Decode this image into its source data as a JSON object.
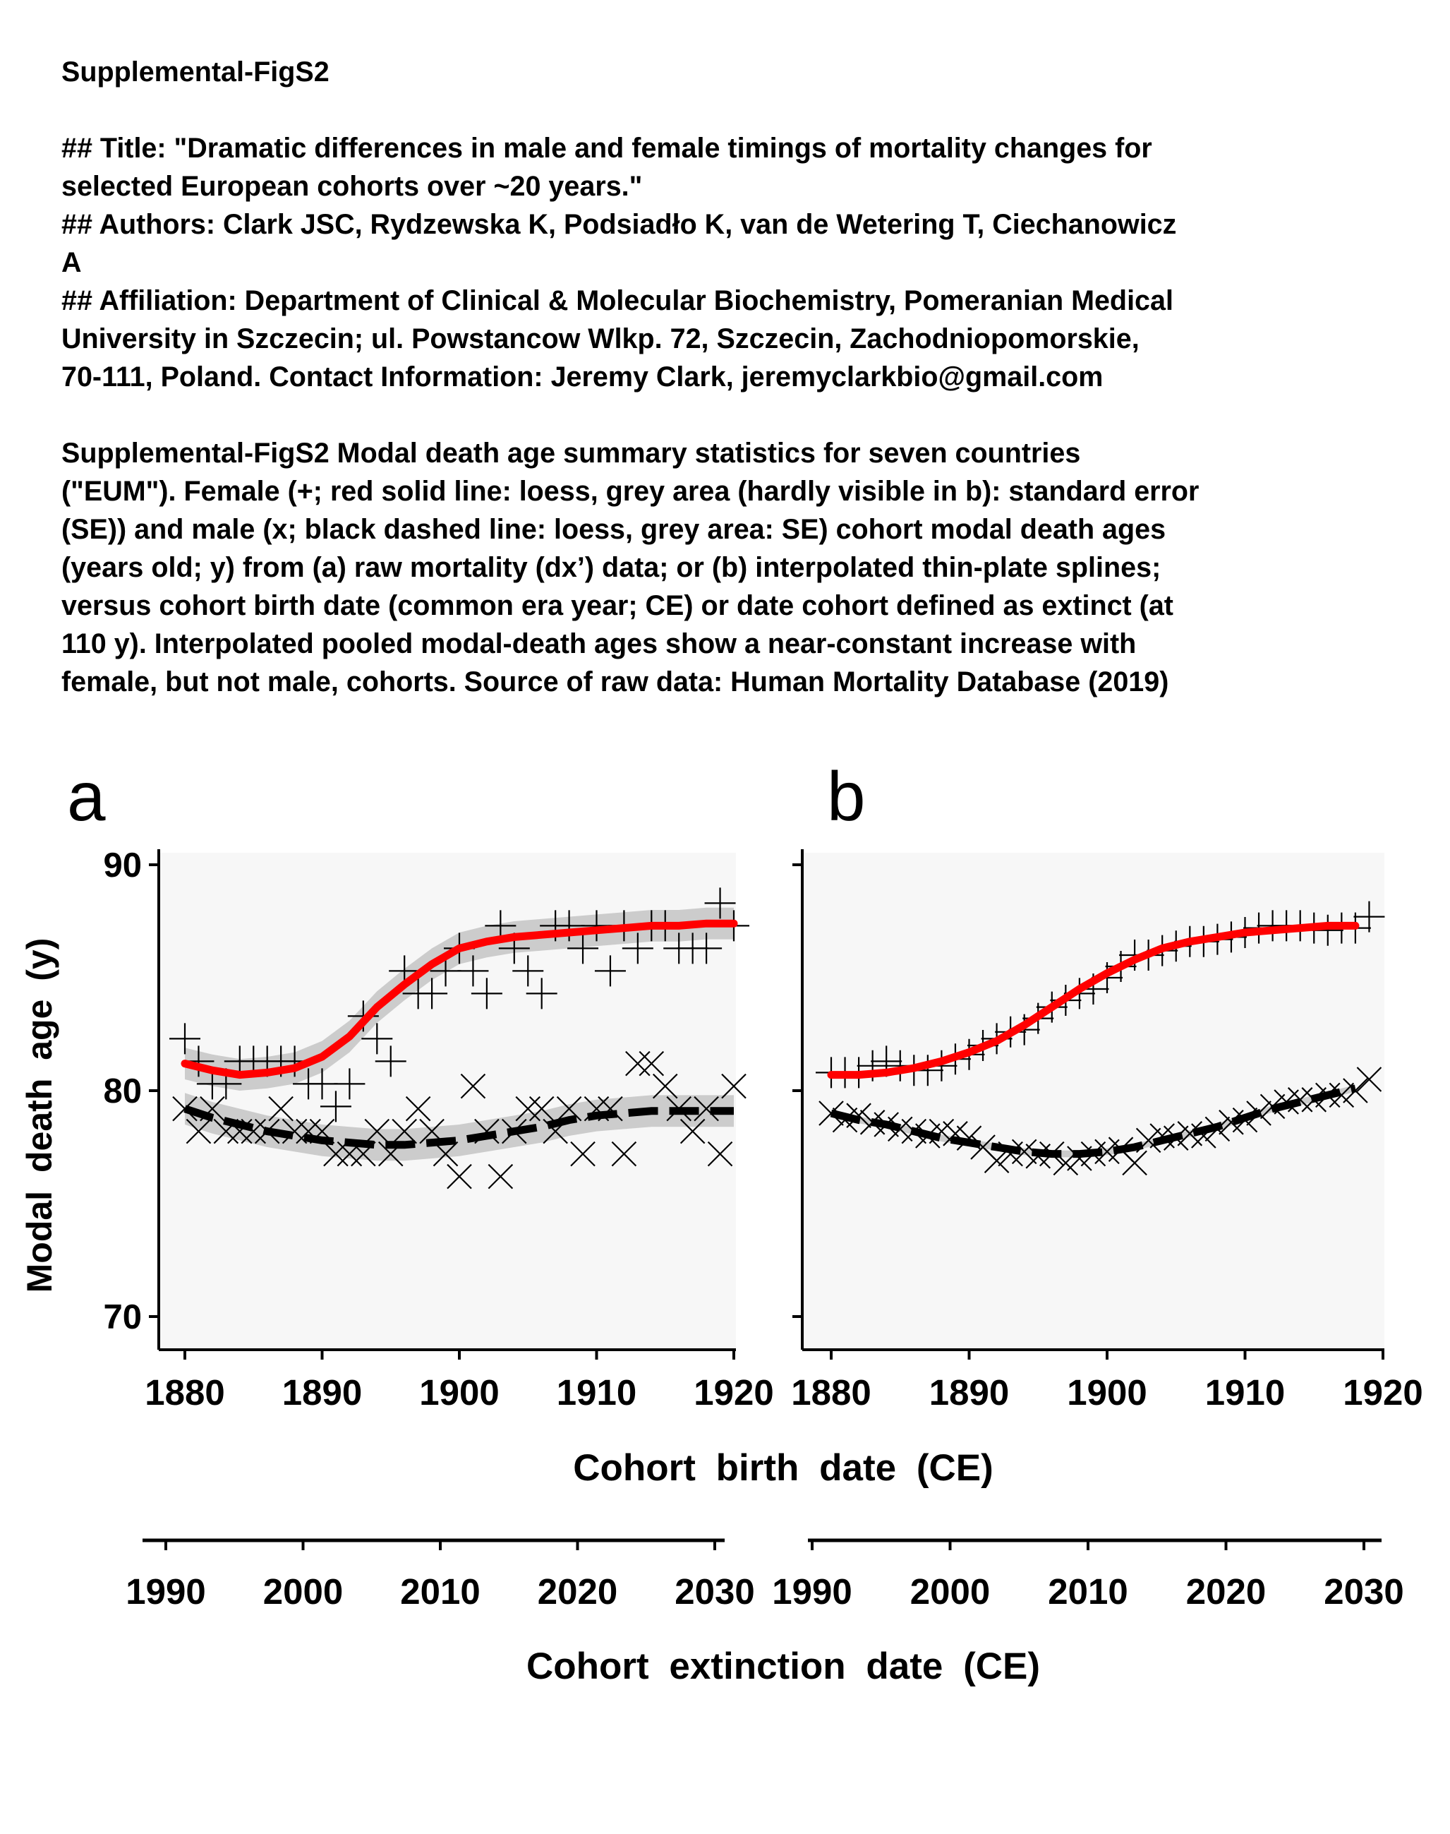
{
  "figure_label": "Supplemental-FigS2",
  "header_lines": [
    "## Title: \"Dramatic differences in male and female timings of mortality changes for",
    "selected European cohorts over ~20 years.\"",
    "## Authors: Clark JSC, Rydzewska K, Podsiadło K, van de Wetering T, Ciechanowicz",
    "A",
    "## Affiliation: Department of Clinical & Molecular Biochemistry, Pomeranian Medical",
    "University in Szczecin; ul. Powstancow Wlkp. 72, Szczecin, Zachodniopomorskie,",
    "70-111, Poland. Contact Information: Jeremy Clark, jeremyclarkbio@gmail.com"
  ],
  "caption_lines": [
    "Supplemental-FigS2 Modal death age summary statistics for seven countries",
    "(\"EUM\"). Female (+; red solid line: loess, grey area (hardly visible in b): standard error",
    "(SE)) and male (x; black dashed line: loess, grey area: SE) cohort modal death ages",
    "(years old; y) from (a) raw mortality (dx’) data; or (b) interpolated thin-plate splines;",
    "versus cohort birth date (common era year; CE) or date cohort defined as extinct (at",
    "110 y). Interpolated pooled modal-death ages show a near-constant increase with",
    "female, but not male, cohorts. Source of raw data: Human Mortality Database (2019)"
  ],
  "colors": {
    "female": "#ff0000",
    "male": "#000000",
    "se_band": "#bdbdbd",
    "panel_bg": "#f7f7f7"
  },
  "chart_data": [
    {
      "type": "scatter",
      "panel": "a",
      "ylabel": "Modal death age (y)",
      "xlabel": "Cohort birth date (CE)",
      "x2label": "Cohort extinction date (CE)",
      "xlim": [
        1878,
        1920.3
      ],
      "ylim": [
        68.7,
        91
      ],
      "x_ticks": [
        1880,
        1890,
        1900,
        1910,
        1920
      ],
      "y_ticks": [
        70,
        80,
        90
      ],
      "x2_ticks": [
        1990,
        2000,
        2010,
        2020,
        2030
      ],
      "x2_offset": 110,
      "series": [
        {
          "marker": "+",
          "points": [
            [
              1880,
              82.3
            ],
            [
              1881,
              81.3
            ],
            [
              1882,
              80.3
            ],
            [
              1883,
              80.3
            ],
            [
              1884,
              81.3
            ],
            [
              1885,
              81.3
            ],
            [
              1886,
              81.3
            ],
            [
              1887,
              81.3
            ],
            [
              1888,
              81.3
            ],
            [
              1889,
              80.3
            ],
            [
              1890,
              80.3
            ],
            [
              1891,
              79.3
            ],
            [
              1892,
              80.3
            ],
            [
              1893,
              83.3
            ],
            [
              1894,
              82.3
            ],
            [
              1895,
              81.3
            ],
            [
              1896,
              85.3
            ],
            [
              1897,
              84.3
            ],
            [
              1898,
              84.3
            ],
            [
              1899,
              85.3
            ],
            [
              1900,
              86.3
            ],
            [
              1901,
              85.3
            ],
            [
              1902,
              84.3
            ],
            [
              1903,
              87.3
            ],
            [
              1904,
              86.3
            ],
            [
              1905,
              85.3
            ],
            [
              1906,
              84.3
            ],
            [
              1907,
              87.3
            ],
            [
              1908,
              87.3
            ],
            [
              1909,
              86.3
            ],
            [
              1910,
              87.3
            ],
            [
              1911,
              85.3
            ],
            [
              1912,
              87.3
            ],
            [
              1913,
              86.3
            ],
            [
              1914,
              87.3
            ],
            [
              1915,
              87.3
            ],
            [
              1916,
              86.3
            ],
            [
              1917,
              86.3
            ],
            [
              1918,
              86.3
            ],
            [
              1919,
              88.3
            ],
            [
              1920,
              87.3
            ]
          ]
        },
        {
          "marker": "x",
          "points": [
            [
              1880,
              79.2
            ],
            [
              1881,
              78.2
            ],
            [
              1882,
              79.2
            ],
            [
              1883,
              78.2
            ],
            [
              1884,
              78.2
            ],
            [
              1885,
              78.2
            ],
            [
              1886,
              78.2
            ],
            [
              1887,
              79.2
            ],
            [
              1888,
              78.2
            ],
            [
              1889,
              78.2
            ],
            [
              1890,
              78.2
            ],
            [
              1891,
              77.2
            ],
            [
              1892,
              77.2
            ],
            [
              1893,
              77.2
            ],
            [
              1894,
              78.2
            ],
            [
              1895,
              77.2
            ],
            [
              1896,
              78.2
            ],
            [
              1897,
              79.2
            ],
            [
              1898,
              78.2
            ],
            [
              1899,
              77.2
            ],
            [
              1900,
              76.2
            ],
            [
              1901,
              80.2
            ],
            [
              1902,
              78.2
            ],
            [
              1903,
              76.2
            ],
            [
              1904,
              78.2
            ],
            [
              1905,
              79.2
            ],
            [
              1906,
              79.2
            ],
            [
              1907,
              78.2
            ],
            [
              1908,
              79.2
            ],
            [
              1909,
              77.2
            ],
            [
              1910,
              79.2
            ],
            [
              1911,
              79.2
            ],
            [
              1912,
              77.2
            ],
            [
              1913,
              81.2
            ],
            [
              1914,
              81.2
            ],
            [
              1915,
              80.2
            ],
            [
              1916,
              79.2
            ],
            [
              1917,
              78.2
            ],
            [
              1918,
              79.2
            ],
            [
              1919,
              77.2
            ],
            [
              1920,
              80.2
            ]
          ]
        }
      ],
      "fits": [
        {
          "style": "solid",
          "se": 0.7,
          "points": [
            [
              1880,
              81.2
            ],
            [
              1882,
              80.9
            ],
            [
              1884,
              80.7
            ],
            [
              1886,
              80.8
            ],
            [
              1888,
              81.0
            ],
            [
              1890,
              81.5
            ],
            [
              1892,
              82.4
            ],
            [
              1894,
              83.7
            ],
            [
              1896,
              84.7
            ],
            [
              1898,
              85.6
            ],
            [
              1900,
              86.3
            ],
            [
              1902,
              86.6
            ],
            [
              1904,
              86.8
            ],
            [
              1906,
              86.9
            ],
            [
              1908,
              87.0
            ],
            [
              1910,
              87.1
            ],
            [
              1912,
              87.2
            ],
            [
              1914,
              87.3
            ],
            [
              1916,
              87.3
            ],
            [
              1918,
              87.4
            ],
            [
              1920,
              87.4
            ]
          ]
        },
        {
          "style": "dashed",
          "se": 0.7,
          "points": [
            [
              1880,
              79.2
            ],
            [
              1882,
              78.8
            ],
            [
              1884,
              78.5
            ],
            [
              1886,
              78.2
            ],
            [
              1888,
              78.0
            ],
            [
              1890,
              77.8
            ],
            [
              1892,
              77.7
            ],
            [
              1894,
              77.6
            ],
            [
              1896,
              77.6
            ],
            [
              1898,
              77.7
            ],
            [
              1900,
              77.8
            ],
            [
              1902,
              78.0
            ],
            [
              1904,
              78.2
            ],
            [
              1906,
              78.4
            ],
            [
              1908,
              78.7
            ],
            [
              1910,
              78.9
            ],
            [
              1912,
              79.0
            ],
            [
              1914,
              79.1
            ],
            [
              1916,
              79.1
            ],
            [
              1918,
              79.1
            ],
            [
              1920,
              79.1
            ]
          ]
        }
      ]
    },
    {
      "type": "scatter",
      "panel": "b",
      "ylabel": "",
      "xlabel": "Cohort birth date (CE)",
      "x2label": "Cohort extinction date (CE)",
      "xlim": [
        1878,
        1920.3
      ],
      "ylim": [
        68.7,
        91
      ],
      "x_ticks": [
        1880,
        1890,
        1900,
        1910,
        1920
      ],
      "y_ticks": [],
      "x2_ticks": [
        1990,
        2000,
        2010,
        2020,
        2030
      ],
      "x2_offset": 110,
      "series": [
        {
          "marker": "+",
          "points": [
            [
              1880,
              80.8
            ],
            [
              1881,
              80.8
            ],
            [
              1882,
              80.8
            ],
            [
              1883,
              81.1
            ],
            [
              1884,
              81.3
            ],
            [
              1885,
              81.1
            ],
            [
              1886,
              80.9
            ],
            [
              1887,
              80.9
            ],
            [
              1888,
              81.1
            ],
            [
              1889,
              81.4
            ],
            [
              1890,
              81.6
            ],
            [
              1891,
              82.0
            ],
            [
              1892,
              82.3
            ],
            [
              1893,
              82.6
            ],
            [
              1894,
              82.7
            ],
            [
              1895,
              83.2
            ],
            [
              1896,
              83.7
            ],
            [
              1897,
              84.0
            ],
            [
              1898,
              84.3
            ],
            [
              1899,
              84.5
            ],
            [
              1900,
              85.0
            ],
            [
              1901,
              85.5
            ],
            [
              1902,
              86.0
            ],
            [
              1903,
              86.0
            ],
            [
              1904,
              86.2
            ],
            [
              1905,
              86.4
            ],
            [
              1906,
              86.6
            ],
            [
              1907,
              86.6
            ],
            [
              1908,
              86.7
            ],
            [
              1909,
              86.8
            ],
            [
              1910,
              87.0
            ],
            [
              1911,
              87.2
            ],
            [
              1912,
              87.3
            ],
            [
              1913,
              87.3
            ],
            [
              1914,
              87.3
            ],
            [
              1915,
              87.2
            ],
            [
              1916,
              87.1
            ],
            [
              1917,
              87.2
            ],
            [
              1918,
              87.2
            ],
            [
              1919,
              87.7
            ]
          ]
        },
        {
          "marker": "x",
          "points": [
            [
              1880,
              79.0
            ],
            [
              1881,
              78.7
            ],
            [
              1882,
              78.9
            ],
            [
              1883,
              78.6
            ],
            [
              1884,
              78.5
            ],
            [
              1885,
              78.3
            ],
            [
              1886,
              78.2
            ],
            [
              1887,
              78.0
            ],
            [
              1888,
              78.2
            ],
            [
              1889,
              78.1
            ],
            [
              1890,
              77.9
            ],
            [
              1891,
              77.5
            ],
            [
              1892,
              76.9
            ],
            [
              1893,
              77.2
            ],
            [
              1894,
              77.3
            ],
            [
              1895,
              77.1
            ],
            [
              1896,
              77.2
            ],
            [
              1897,
              76.8
            ],
            [
              1898,
              77.0
            ],
            [
              1899,
              77.2
            ],
            [
              1900,
              77.3
            ],
            [
              1901,
              77.4
            ],
            [
              1902,
              76.8
            ],
            [
              1903,
              77.8
            ],
            [
              1904,
              78.0
            ],
            [
              1905,
              77.9
            ],
            [
              1906,
              78.1
            ],
            [
              1907,
              78.0
            ],
            [
              1908,
              78.3
            ],
            [
              1909,
              78.6
            ],
            [
              1910,
              78.7
            ],
            [
              1911,
              79.0
            ],
            [
              1912,
              79.3
            ],
            [
              1913,
              79.5
            ],
            [
              1914,
              79.6
            ],
            [
              1915,
              79.6
            ],
            [
              1916,
              79.8
            ],
            [
              1917,
              79.8
            ],
            [
              1918,
              80.0
            ],
            [
              1919,
              80.5
            ]
          ]
        }
      ],
      "fits": [
        {
          "style": "solid",
          "se": 0.15,
          "points": [
            [
              1880,
              80.7
            ],
            [
              1882,
              80.7
            ],
            [
              1884,
              80.8
            ],
            [
              1886,
              81.0
            ],
            [
              1888,
              81.3
            ],
            [
              1890,
              81.7
            ],
            [
              1892,
              82.2
            ],
            [
              1894,
              82.9
            ],
            [
              1896,
              83.7
            ],
            [
              1898,
              84.5
            ],
            [
              1900,
              85.2
            ],
            [
              1902,
              85.8
            ],
            [
              1904,
              86.3
            ],
            [
              1906,
              86.6
            ],
            [
              1908,
              86.8
            ],
            [
              1910,
              87.0
            ],
            [
              1912,
              87.1
            ],
            [
              1914,
              87.2
            ],
            [
              1916,
              87.3
            ],
            [
              1918,
              87.3
            ]
          ]
        },
        {
          "style": "dashed",
          "se": 0.15,
          "points": [
            [
              1880,
              79.0
            ],
            [
              1882,
              78.7
            ],
            [
              1884,
              78.5
            ],
            [
              1886,
              78.2
            ],
            [
              1888,
              77.9
            ],
            [
              1890,
              77.7
            ],
            [
              1892,
              77.5
            ],
            [
              1894,
              77.3
            ],
            [
              1896,
              77.2
            ],
            [
              1898,
              77.2
            ],
            [
              1900,
              77.3
            ],
            [
              1902,
              77.5
            ],
            [
              1904,
              77.8
            ],
            [
              1906,
              78.1
            ],
            [
              1908,
              78.4
            ],
            [
              1910,
              78.8
            ],
            [
              1912,
              79.2
            ],
            [
              1914,
              79.5
            ],
            [
              1916,
              79.8
            ],
            [
              1918,
              80.1
            ]
          ]
        }
      ]
    }
  ]
}
